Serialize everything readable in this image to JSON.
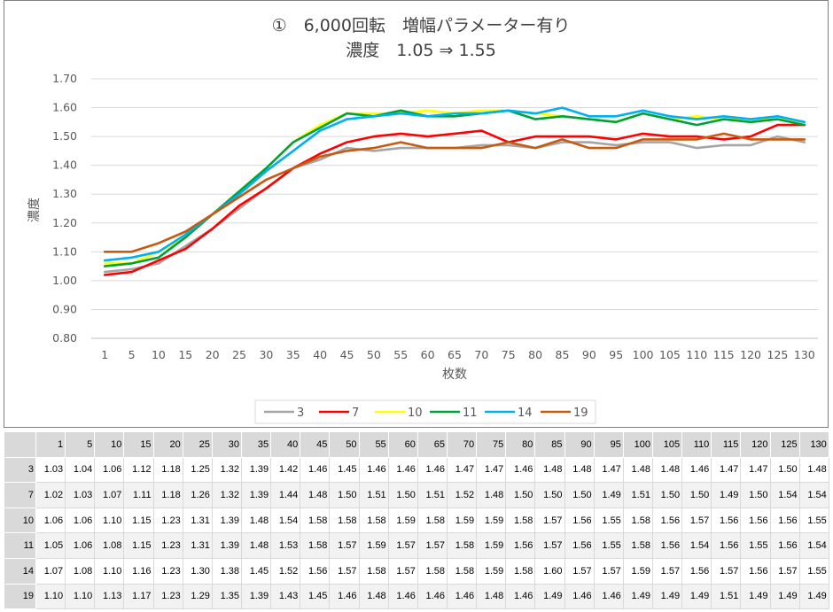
{
  "chart_data": {
    "type": "line",
    "title_line1": "①　6,000回転　増幅パラメーター有り",
    "title_line2": "濃度　1.05 ⇒ 1.55",
    "xlabel": "枚数",
    "ylabel": "濃度",
    "ylim": [
      0.8,
      1.7
    ],
    "yticks": [
      "0.80",
      "0.90",
      "1.00",
      "1.10",
      "1.20",
      "1.30",
      "1.40",
      "1.50",
      "1.60",
      "1.70"
    ],
    "grid": "horizontal",
    "legend_position": "bottom",
    "categories": [
      "1",
      "5",
      "10",
      "15",
      "20",
      "25",
      "30",
      "35",
      "40",
      "45",
      "50",
      "55",
      "60",
      "65",
      "70",
      "75",
      "80",
      "85",
      "90",
      "95",
      "100",
      "105",
      "110",
      "115",
      "120",
      "125",
      "130"
    ],
    "series": [
      {
        "name": "3",
        "color": "#a5a5a5",
        "values": [
          1.03,
          1.04,
          1.06,
          1.12,
          1.18,
          1.25,
          1.32,
          1.39,
          1.42,
          1.46,
          1.45,
          1.46,
          1.46,
          1.46,
          1.47,
          1.47,
          1.46,
          1.48,
          1.48,
          1.47,
          1.48,
          1.48,
          1.46,
          1.47,
          1.47,
          1.5,
          1.48
        ]
      },
      {
        "name": "7",
        "color": "#ff0000",
        "values": [
          1.02,
          1.03,
          1.07,
          1.11,
          1.18,
          1.26,
          1.32,
          1.39,
          1.44,
          1.48,
          1.5,
          1.51,
          1.5,
          1.51,
          1.52,
          1.48,
          1.5,
          1.5,
          1.5,
          1.49,
          1.51,
          1.5,
          1.5,
          1.49,
          1.5,
          1.54,
          1.54
        ]
      },
      {
        "name": "10",
        "color": "#ffff00",
        "values": [
          1.06,
          1.06,
          1.1,
          1.15,
          1.23,
          1.31,
          1.39,
          1.48,
          1.54,
          1.58,
          1.58,
          1.58,
          1.59,
          1.58,
          1.59,
          1.59,
          1.58,
          1.57,
          1.56,
          1.55,
          1.58,
          1.56,
          1.57,
          1.56,
          1.56,
          1.56,
          1.55
        ]
      },
      {
        "name": "11",
        "color": "#00a03c",
        "values": [
          1.05,
          1.06,
          1.08,
          1.15,
          1.23,
          1.31,
          1.39,
          1.48,
          1.53,
          1.58,
          1.57,
          1.59,
          1.57,
          1.57,
          1.58,
          1.59,
          1.56,
          1.57,
          1.56,
          1.55,
          1.58,
          1.56,
          1.54,
          1.56,
          1.55,
          1.56,
          1.54
        ]
      },
      {
        "name": "14",
        "color": "#00b0f0",
        "values": [
          1.07,
          1.08,
          1.1,
          1.16,
          1.23,
          1.3,
          1.38,
          1.45,
          1.52,
          1.56,
          1.57,
          1.58,
          1.57,
          1.58,
          1.58,
          1.59,
          1.58,
          1.6,
          1.57,
          1.57,
          1.59,
          1.57,
          1.56,
          1.57,
          1.56,
          1.57,
          1.55
        ]
      },
      {
        "name": "19",
        "color": "#c55a11",
        "values": [
          1.1,
          1.1,
          1.13,
          1.17,
          1.23,
          1.29,
          1.35,
          1.39,
          1.43,
          1.45,
          1.46,
          1.48,
          1.46,
          1.46,
          1.46,
          1.48,
          1.46,
          1.49,
          1.46,
          1.46,
          1.49,
          1.49,
          1.49,
          1.51,
          1.49,
          1.49,
          1.49
        ]
      }
    ]
  }
}
